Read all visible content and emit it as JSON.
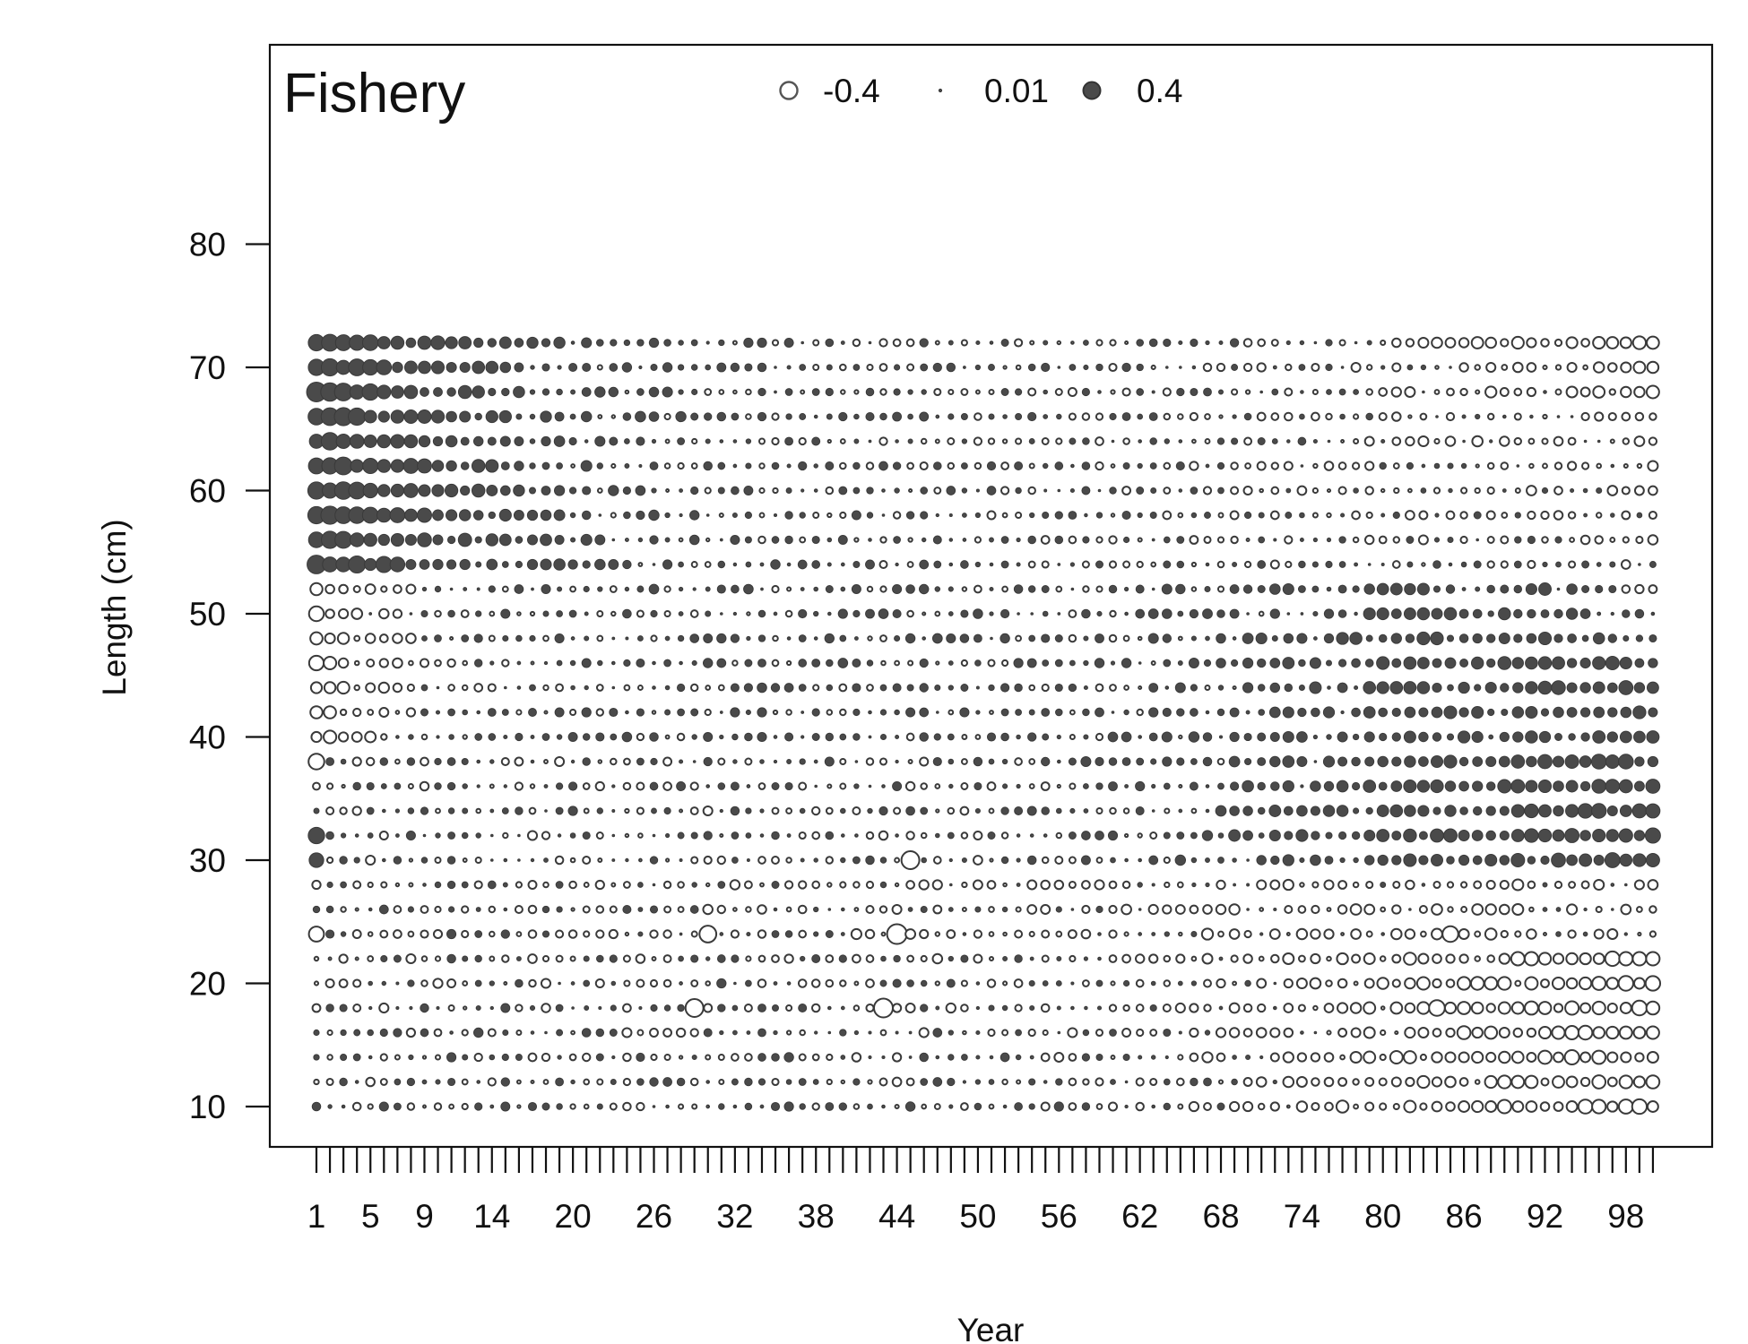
{
  "chart_data": {
    "type": "scatter",
    "subtype": "bubble-residuals",
    "panel_label": "Fishery",
    "xlabel": "Year",
    "ylabel": "Length (cm)",
    "x_tick_labels": [
      "1",
      "5",
      "9",
      "14",
      "20",
      "26",
      "32",
      "38",
      "44",
      "50",
      "56",
      "62",
      "68",
      "74",
      "80",
      "86",
      "92",
      "98"
    ],
    "x_tick_values": [
      1,
      5,
      9,
      14,
      20,
      26,
      32,
      38,
      44,
      50,
      56,
      62,
      68,
      74,
      80,
      86,
      92,
      98
    ],
    "x_minor_ticks": "every year 1-100",
    "xlim": [
      -2.5,
      104
    ],
    "y_tick_labels": [
      "10",
      "20",
      "30",
      "40",
      "50",
      "60",
      "70",
      "80"
    ],
    "y_tick_values": [
      10,
      20,
      30,
      40,
      50,
      60,
      70,
      80
    ],
    "ylim": [
      6.7,
      90.2
    ],
    "grid": false,
    "years": [
      1,
      100
    ],
    "length_bins": [
      10,
      12,
      14,
      16,
      18,
      20,
      22,
      24,
      26,
      28,
      30,
      32,
      34,
      36,
      38,
      40,
      42,
      44,
      46,
      48,
      50,
      52,
      54,
      56,
      58,
      60,
      62,
      64,
      66,
      68,
      70,
      72
    ],
    "legend": {
      "position": "top-center",
      "entries": [
        {
          "label": "-0.4",
          "value": -0.4,
          "filled": false
        },
        {
          "label": "0.01",
          "value": 0.01,
          "filled": true
        },
        {
          "label": "0.4",
          "value": 0.4,
          "filled": true
        }
      ]
    },
    "encoding": "bubble area proportional to |residual|; open = negative, filled = positive",
    "colors": {
      "positive_fill": "#4a4a4a",
      "negative_fill": "#ffffff",
      "stroke": "#3a3a3a"
    },
    "highlighted_residuals": [
      {
        "year": 1,
        "length": 60,
        "value": 0.42
      },
      {
        "year": 1,
        "length": 58,
        "value": 0.42
      },
      {
        "year": 1,
        "length": 62,
        "value": 0.36
      },
      {
        "year": 1,
        "length": 56,
        "value": 0.35
      },
      {
        "year": 1,
        "length": 64,
        "value": 0.28
      },
      {
        "year": 1,
        "length": 32,
        "value": 0.38
      },
      {
        "year": 1,
        "length": 30,
        "value": 0.3
      },
      {
        "year": 1,
        "length": 38,
        "value": -0.35
      },
      {
        "year": 1,
        "length": 24,
        "value": -0.32
      },
      {
        "year": 44,
        "length": 24,
        "value": -0.55
      },
      {
        "year": 43,
        "length": 18,
        "value": -0.5
      },
      {
        "year": 29,
        "length": 18,
        "value": -0.45
      },
      {
        "year": 45,
        "length": 30,
        "value": -0.45
      },
      {
        "year": 30,
        "length": 24,
        "value": -0.4
      },
      {
        "year": 85,
        "length": 24,
        "value": -0.35
      },
      {
        "year": 84,
        "length": 18,
        "value": -0.35
      },
      {
        "year": 100,
        "length": 36,
        "value": 0.28
      },
      {
        "year": 99,
        "length": 34,
        "value": 0.28
      }
    ]
  }
}
